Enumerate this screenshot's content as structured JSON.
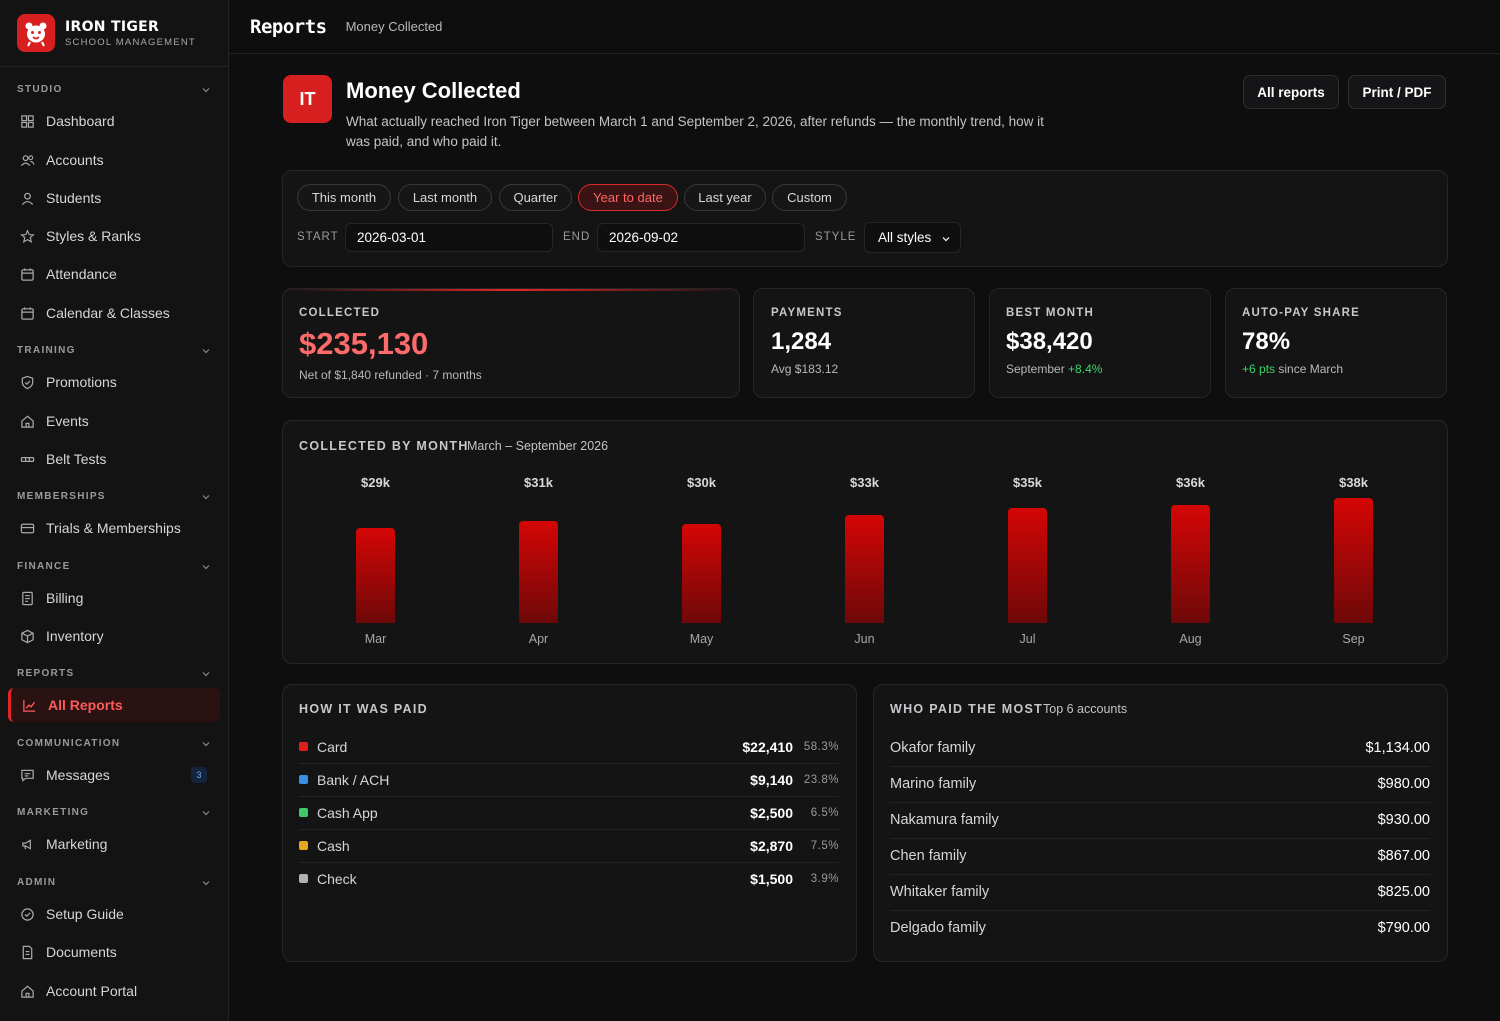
{
  "brand": {
    "name": "IRON TIGER",
    "sub": "SCHOOL MANAGEMENT"
  },
  "nav": {
    "studio": "STUDIO",
    "dashboard": "Dashboard",
    "accounts": "Accounts",
    "students": "Students",
    "styles_ranks": "Styles & Ranks",
    "attendance": "Attendance",
    "calendar": "Calendar & Classes",
    "training": "TRAINING",
    "promotions": "Promotions",
    "events": "Events",
    "belt_tests": "Belt Tests",
    "memberships": "MEMBERSHIPS",
    "trials": "Trials & Memberships",
    "finance": "FINANCE",
    "billing": "Billing",
    "inventory": "Inventory",
    "reports": "REPORTS",
    "all_reports": "All Reports",
    "communication": "COMMUNICATION",
    "messages": "Messages",
    "messages_badge": "3",
    "marketing_section": "MARKETING",
    "marketing": "Marketing",
    "admin": "ADMIN",
    "setup_guide": "Setup Guide",
    "documents": "Documents",
    "account_portal": "Account Portal"
  },
  "topbar": {
    "title": "Reports",
    "crumb": "Money Collected"
  },
  "header": {
    "logo": "IT",
    "title": "Money Collected",
    "description": "What actually reached Iron Tiger between March 1 and September 2, 2026, after refunds — the monthly trend, how it was paid, and who paid it.",
    "all_reports": "All reports",
    "print": "Print / PDF"
  },
  "filters": {
    "chips": [
      "This month",
      "Last month",
      "Quarter",
      "Year to date",
      "Last year",
      "Custom"
    ],
    "active_chip": "Year to date",
    "start_label": "START",
    "start_value": "2026-03-01",
    "end_label": "END",
    "end_value": "2026-09-02",
    "style_label": "STYLE",
    "style_value": "All styles"
  },
  "stats": {
    "collected": {
      "label": "COLLECTED",
      "value": "$235,130",
      "sub": "Net of $1,840 refunded · 7 months"
    },
    "payments": {
      "label": "PAYMENTS",
      "value": "1,284",
      "sub": "Avg $183.12"
    },
    "best_month": {
      "label": "BEST MONTH",
      "value": "$38,420",
      "sub": "September",
      "delta": "+8.4%"
    },
    "autopay": {
      "label": "AUTO-PAY SHARE",
      "value": "78%",
      "delta": "+6 pts",
      "sub": "since March"
    }
  },
  "chart_data": {
    "type": "bar",
    "title": "COLLECTED BY MONTH",
    "subtitle": "March – September 2026",
    "categories": [
      "Mar",
      "Apr",
      "May",
      "Jun",
      "Jul",
      "Aug",
      "Sep"
    ],
    "values": [
      29,
      31,
      30,
      33,
      35,
      36,
      38
    ],
    "data_labels": [
      "$29k",
      "$31k",
      "$30k",
      "$33k",
      "$35k",
      "$36k",
      "$38k"
    ],
    "xlabel": "",
    "ylabel": "",
    "grid": false,
    "bar_color": "#d50606"
  },
  "payment_methods": {
    "title": "HOW IT WAS PAID",
    "rows": [
      {
        "name": "Card",
        "amount": "$22,410",
        "pct": "58.3%",
        "color": "#e01d1d"
      },
      {
        "name": "Bank / ACH",
        "amount": "$9,140",
        "pct": "23.8%",
        "color": "#3a8ee6"
      },
      {
        "name": "Cash App",
        "amount": "$2,500",
        "pct": "6.5%",
        "color": "#3fc96a"
      },
      {
        "name": "Cash",
        "amount": "$2,870",
        "pct": "7.5%",
        "color": "#e6a81e"
      },
      {
        "name": "Check",
        "amount": "$1,500",
        "pct": "3.9%",
        "color": "#b0b0b4"
      }
    ]
  },
  "top_payers": {
    "title": "WHO PAID THE MOST",
    "subtitle": "Top 6 accounts",
    "rows": [
      {
        "name": "Okafor family",
        "amount": "$1,134.00"
      },
      {
        "name": "Marino family",
        "amount": "$980.00"
      },
      {
        "name": "Nakamura family",
        "amount": "$930.00"
      },
      {
        "name": "Chen family",
        "amount": "$867.00"
      },
      {
        "name": "Whitaker family",
        "amount": "$825.00"
      },
      {
        "name": "Delgado family",
        "amount": "$790.00"
      }
    ]
  }
}
